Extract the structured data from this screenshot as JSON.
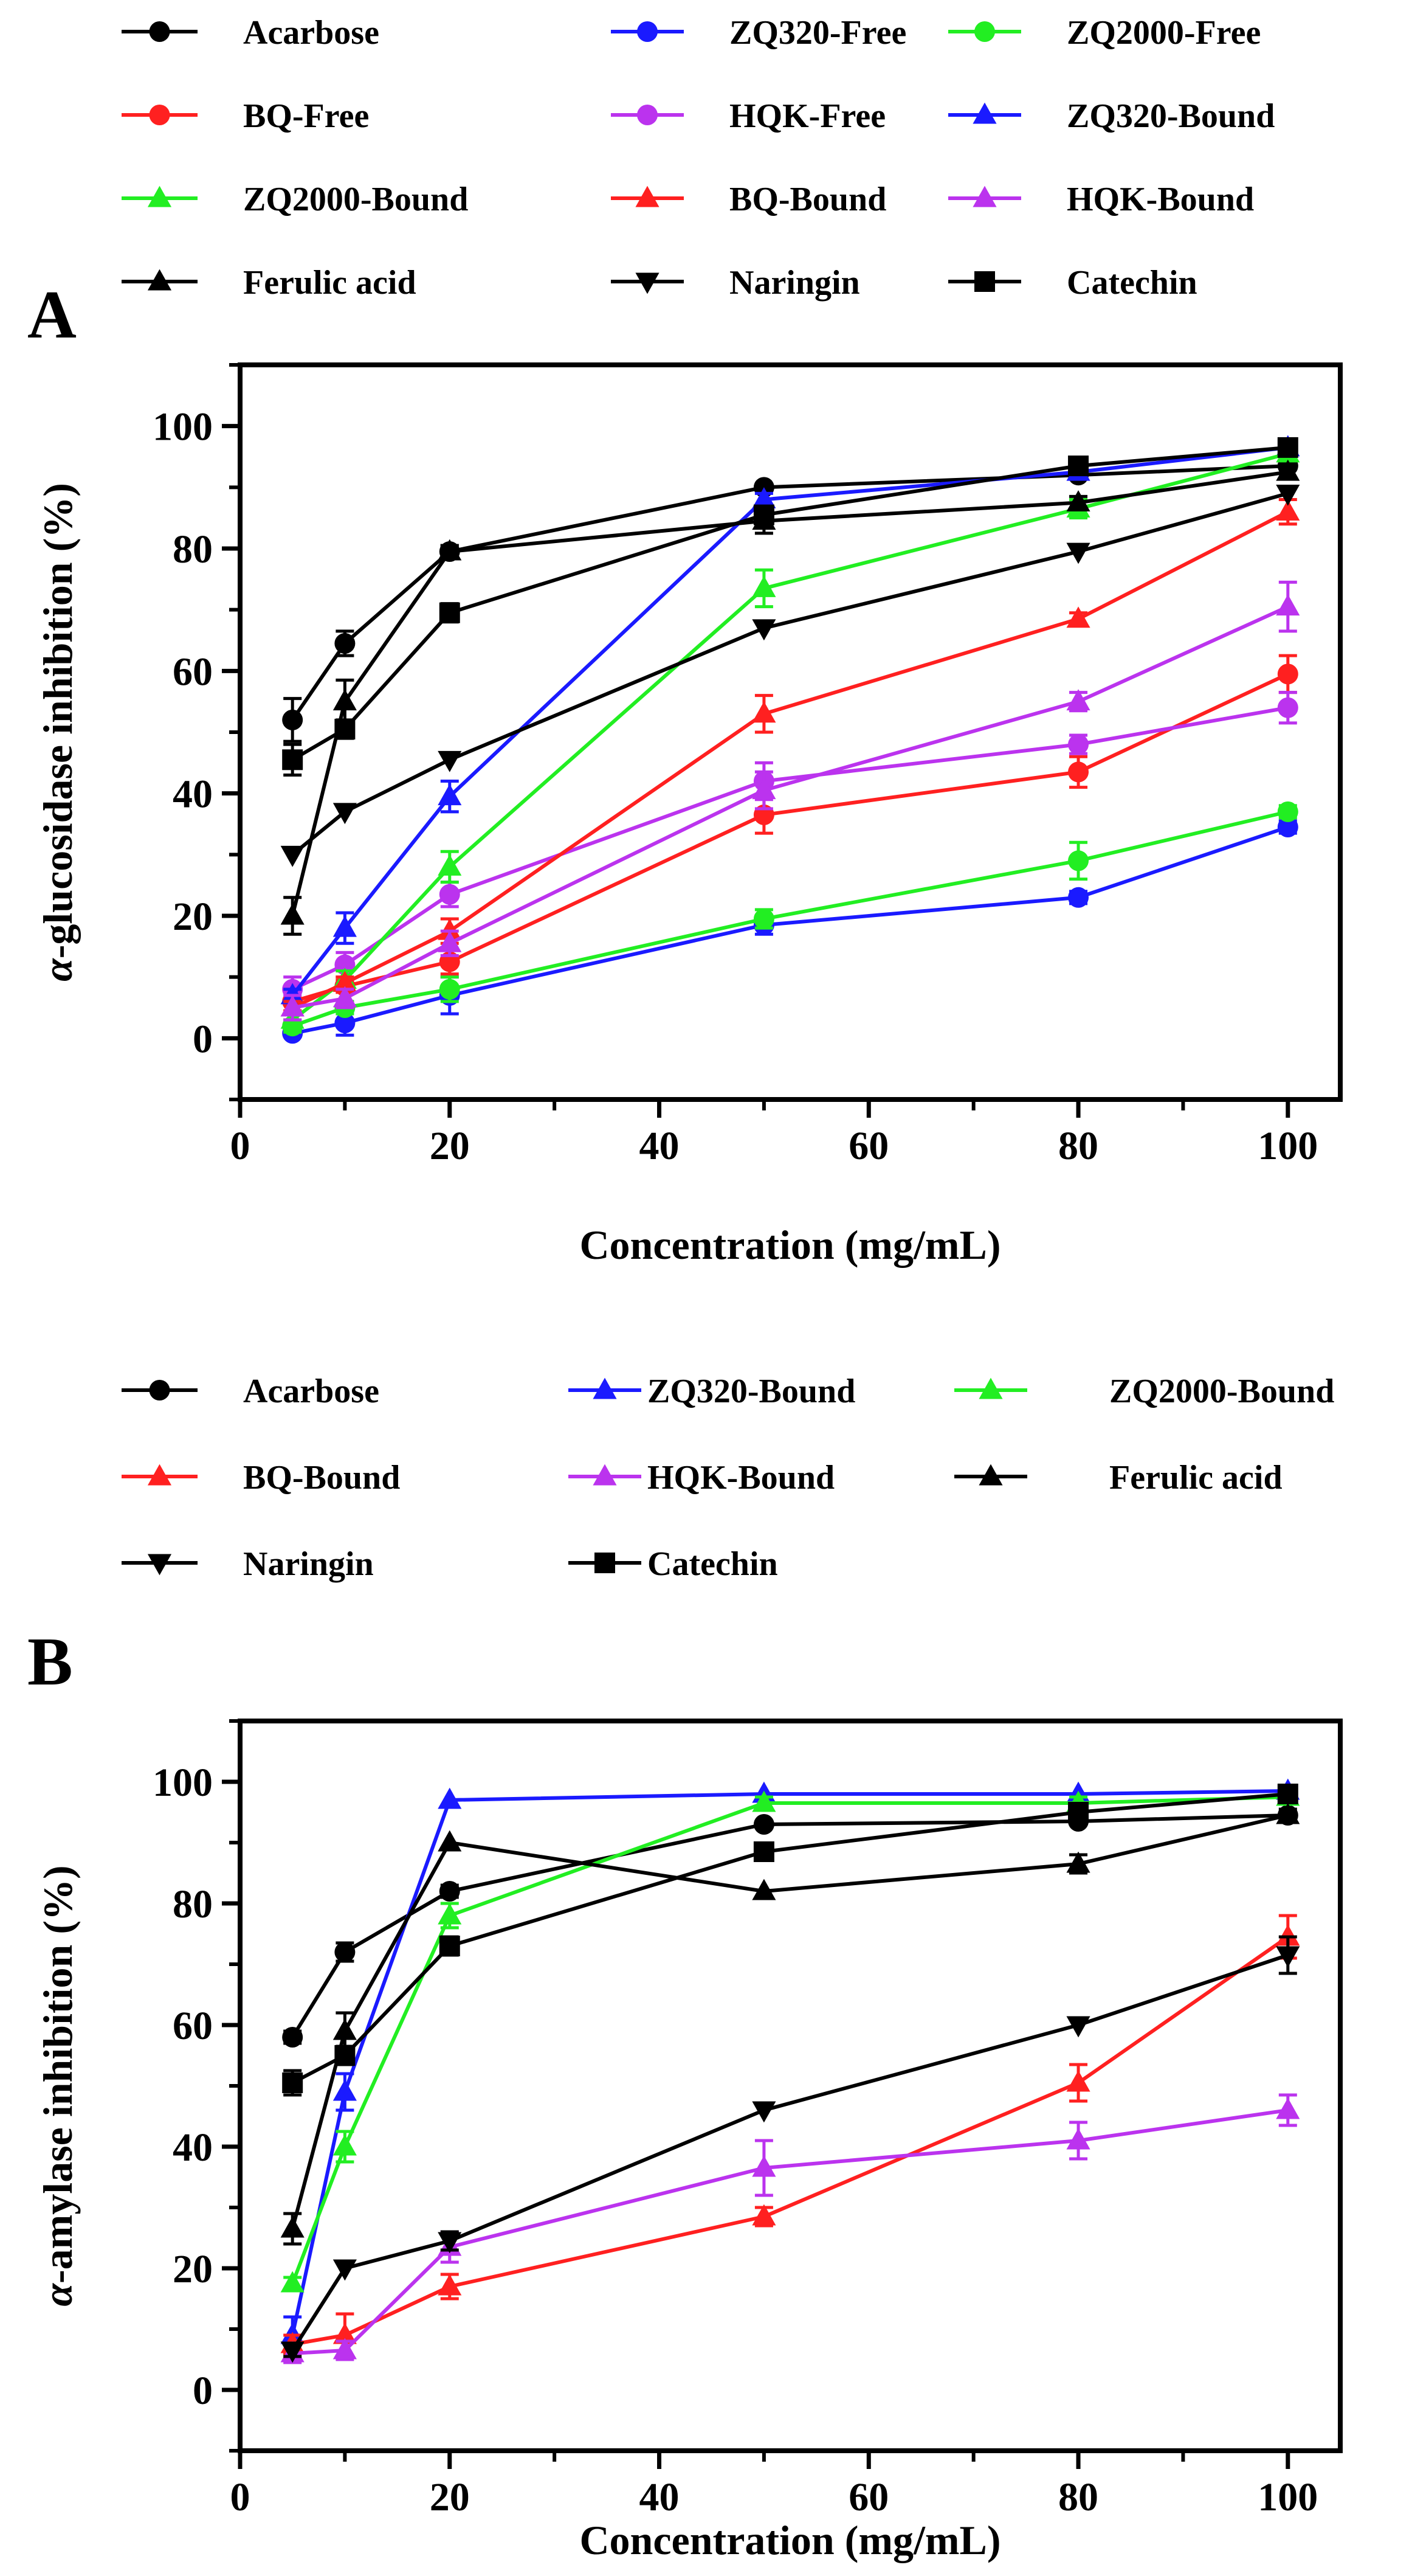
{
  "chart_data": [
    {
      "panel_label": "A",
      "type": "line",
      "title": "",
      "xlabel": "Concentration (mg/mL)",
      "ylabel_greek": "α",
      "ylabel_rest": "-glucosidase inhibition (%)",
      "xlim": [
        0,
        105
      ],
      "ylim": [
        -10,
        110
      ],
      "xticks": [
        0,
        20,
        40,
        60,
        80,
        100
      ],
      "yticks": [
        0,
        20,
        40,
        60,
        80,
        100
      ],
      "grid": false,
      "legend_position": "top",
      "x": [
        5,
        10,
        20,
        50,
        80,
        100
      ],
      "series": [
        {
          "name": "Acarbose",
          "color": "#000000",
          "marker": "circle",
          "values": [
            52,
            64.5,
            79.5,
            90,
            92,
            93.5
          ],
          "errors": [
            3.5,
            2,
            1,
            0.8,
            0.8,
            0.8
          ]
        },
        {
          "name": "ZQ320-Free",
          "color": "#1a1aff",
          "marker": "circle",
          "values": [
            0.8,
            2.5,
            7,
            18.5,
            23,
            34.5
          ],
          "errors": [
            0.8,
            2,
            3,
            1.5,
            1,
            1
          ]
        },
        {
          "name": "ZQ2000-Free",
          "color": "#22ee22",
          "marker": "circle",
          "values": [
            2,
            5,
            8,
            19.5,
            29,
            37
          ],
          "errors": [
            1,
            1,
            2,
            1.5,
            3,
            1
          ]
        },
        {
          "name": "BQ-Free",
          "color": "#ff2020",
          "marker": "circle",
          "values": [
            6,
            8.5,
            12.5,
            36.5,
            43.5,
            59.5
          ],
          "errors": [
            1.5,
            1,
            2,
            3,
            2.5,
            3
          ]
        },
        {
          "name": "HQK-Free",
          "color": "#bb33ee",
          "marker": "circle",
          "values": [
            8,
            12,
            23.5,
            42,
            48,
            54
          ],
          "errors": [
            2,
            2,
            2,
            3,
            1.5,
            2.5
          ]
        },
        {
          "name": "ZQ320-Bound",
          "color": "#1a1aff",
          "marker": "triangle-up",
          "values": [
            7,
            18,
            39.5,
            88,
            92.5,
            96.5
          ],
          "errors": [
            1,
            2.5,
            2.5,
            1,
            1,
            0.8
          ]
        },
        {
          "name": "ZQ2000-Bound",
          "color": "#22ee22",
          "marker": "triangle-up",
          "values": [
            3,
            9.5,
            28,
            73.5,
            86.5,
            95.5
          ],
          "errors": [
            1,
            1.5,
            2.5,
            3,
            1.5,
            1
          ]
        },
        {
          "name": "BQ-Bound",
          "color": "#ff2020",
          "marker": "triangle-up",
          "values": [
            5,
            9,
            17.5,
            53,
            68.5,
            86
          ],
          "errors": [
            1,
            1,
            2,
            3,
            1,
            2
          ]
        },
        {
          "name": "HQK-Bound",
          "color": "#bb33ee",
          "marker": "triangle-up",
          "values": [
            5,
            6.5,
            15.5,
            40.5,
            55,
            70.5
          ],
          "errors": [
            2,
            1.5,
            2,
            3,
            1.5,
            4
          ]
        },
        {
          "name": "Ferulic acid",
          "color": "#000000",
          "marker": "triangle-up",
          "values": [
            20,
            55,
            79.5,
            84.5,
            87.5,
            92.5
          ],
          "errors": [
            3,
            3.5,
            1,
            2,
            1,
            1
          ]
        },
        {
          "name": "Naringin",
          "color": "#000000",
          "marker": "triangle-down",
          "values": [
            30,
            37,
            45.5,
            67,
            79.5,
            89
          ],
          "errors": [
            0.8,
            0.8,
            0.8,
            0.8,
            0.8,
            0.8
          ]
        },
        {
          "name": "Catechin",
          "color": "#000000",
          "marker": "square",
          "values": [
            45.5,
            50.5,
            69.5,
            85.5,
            93.5,
            96.5
          ],
          "errors": [
            2.5,
            1.5,
            1.5,
            1,
            1,
            0.8
          ]
        }
      ]
    },
    {
      "panel_label": "B",
      "type": "line",
      "title": "",
      "xlabel": "Concentration (mg/mL)",
      "ylabel_greek": "α",
      "ylabel_rest": "-amylase inhibition (%)",
      "xlim": [
        0,
        105
      ],
      "ylim": [
        -10,
        110
      ],
      "xticks": [
        0,
        20,
        40,
        60,
        80,
        100
      ],
      "yticks": [
        0,
        20,
        40,
        60,
        80,
        100
      ],
      "grid": false,
      "legend_position": "top",
      "x": [
        5,
        10,
        20,
        50,
        80,
        100
      ],
      "series": [
        {
          "name": "Acarbose",
          "color": "#000000",
          "marker": "circle",
          "values": [
            58,
            72,
            82,
            93,
            93.5,
            94.5
          ],
          "errors": [
            1,
            1.5,
            1,
            0.8,
            0.8,
            0.8
          ]
        },
        {
          "name": "ZQ320-Bound",
          "color": "#1a1aff",
          "marker": "triangle-up",
          "values": [
            9,
            49,
            97,
            98,
            98,
            98.5
          ],
          "errors": [
            3,
            3,
            0.5,
            0.5,
            0.5,
            0.5
          ]
        },
        {
          "name": "ZQ2000-Bound",
          "color": "#22ee22",
          "marker": "triangle-up",
          "values": [
            17.5,
            40,
            78,
            96.5,
            96.5,
            97.5
          ],
          "errors": [
            1,
            2.5,
            2,
            1,
            1,
            1
          ]
        },
        {
          "name": "BQ-Bound",
          "color": "#ff2020",
          "marker": "triangle-up",
          "values": [
            7.5,
            9,
            17,
            28.5,
            50.5,
            74.5
          ],
          "errors": [
            1.5,
            3.5,
            2,
            1.5,
            3,
            3.5
          ]
        },
        {
          "name": "HQK-Bound",
          "color": "#bb33ee",
          "marker": "triangle-up",
          "values": [
            6,
            6.5,
            23.5,
            36.5,
            41,
            46
          ],
          "errors": [
            1.5,
            1.5,
            2.5,
            4.5,
            3,
            2.5
          ]
        },
        {
          "name": "Ferulic acid",
          "color": "#000000",
          "marker": "triangle-up",
          "values": [
            26.5,
            59,
            90,
            82,
            86.5,
            94.5
          ],
          "errors": [
            2.5,
            3,
            0.8,
            0.8,
            1.5,
            1
          ]
        },
        {
          "name": "Naringin",
          "color": "#000000",
          "marker": "triangle-down",
          "values": [
            6.5,
            20,
            24.5,
            46,
            60,
            71.5
          ],
          "errors": [
            1,
            0.8,
            1.5,
            0.8,
            0.8,
            3
          ]
        },
        {
          "name": "Catechin",
          "color": "#000000",
          "marker": "square",
          "values": [
            50.5,
            55,
            73,
            88.5,
            95,
            98
          ],
          "errors": [
            2,
            1.5,
            1.5,
            1,
            0.8,
            0.8
          ]
        }
      ]
    }
  ]
}
